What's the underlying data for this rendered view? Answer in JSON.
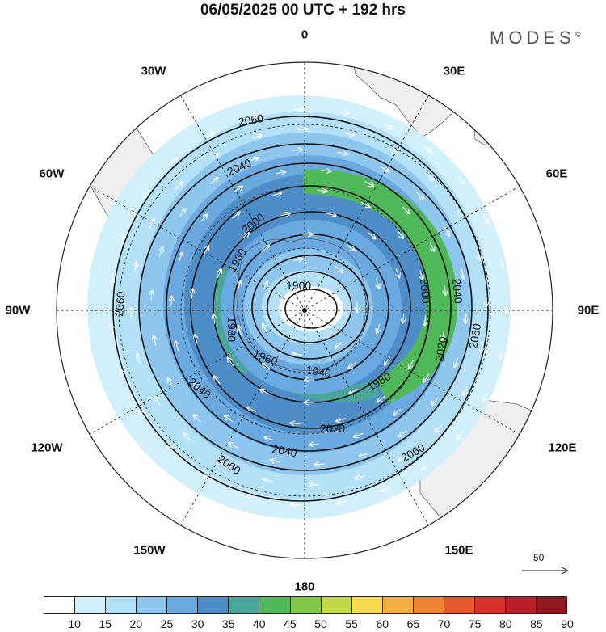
{
  "title": "06/05/2025  00 UTC  + 192 hrs",
  "brand": "MODES",
  "brand_mark": "©",
  "longitude_labels": {
    "lon_0": "0",
    "lon_30e": "30E",
    "lon_60e": "60E",
    "lon_90e": "90E",
    "lon_120e": "120E",
    "lon_150e": "150E",
    "lon_180": "180",
    "lon_150w": "150W",
    "lon_120w": "120W",
    "lon_90w": "90W",
    "lon_60w": "60W",
    "lon_30w": "30W"
  },
  "contour_labels": {
    "c1900": "1900",
    "c1940": "1940",
    "c1960a": "1960",
    "c1960b": "1960",
    "c1980a": "1980",
    "c1980b": "1980",
    "c2000a": "2000",
    "c2000b": "2000",
    "c2020a": "2020",
    "c2020b": "2020",
    "c2040a": "2040",
    "c2040b": "2040",
    "c2040c": "2040",
    "c2040d": "2040",
    "c2060a": "2060",
    "c2060b": "2060",
    "c2060c": "2060",
    "c2060d": "2060",
    "c2060e": "2060"
  },
  "reference_vector": "50",
  "colorbar": {
    "labels": [
      "10",
      "15",
      "20",
      "25",
      "30",
      "35",
      "40",
      "45",
      "50",
      "55",
      "60",
      "65",
      "70",
      "75",
      "80",
      "85",
      "90"
    ],
    "colors": [
      "#ffffff",
      "#d2effc",
      "#b4e0f8",
      "#8ec6ee",
      "#6aa9e0",
      "#4f8dc8",
      "#4aa59a",
      "#4fb858",
      "#82c64a",
      "#c2d84a",
      "#f6dc4e",
      "#f4ae42",
      "#ec8232",
      "#e4582c",
      "#d8302a",
      "#b8202a",
      "#901820"
    ]
  }
}
